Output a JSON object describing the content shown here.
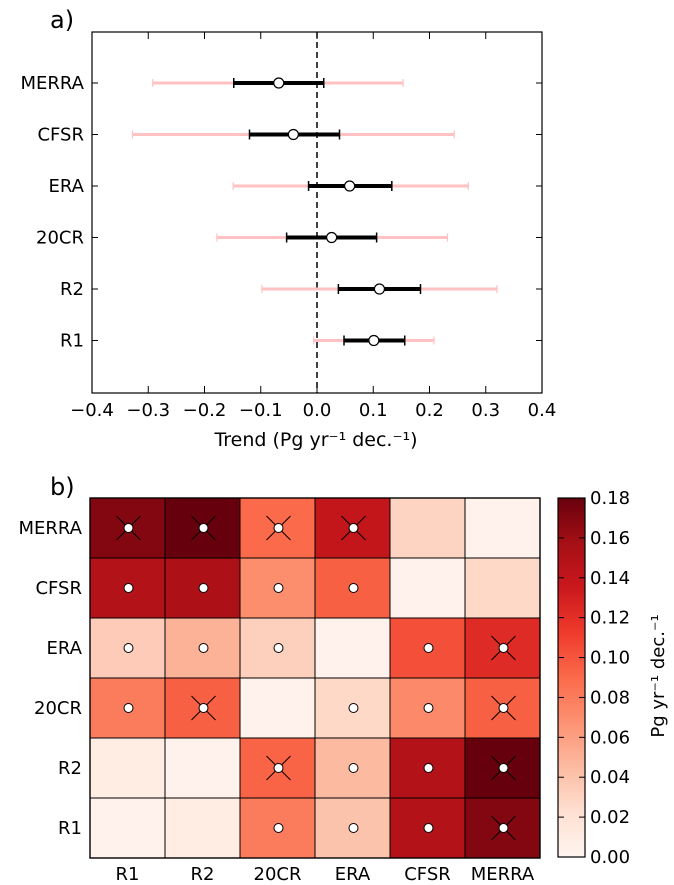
{
  "chart_data": [
    {
      "type": "errorbar",
      "panel_label": "a)",
      "xlabel": "Trend (Pg yr⁻¹ dec.⁻¹)",
      "xlim": [
        -0.4,
        0.4
      ],
      "xticks": [
        -0.4,
        -0.3,
        -0.2,
        -0.1,
        0.0,
        0.1,
        0.2,
        0.3,
        0.4
      ],
      "xtick_labels": [
        "−0.4",
        "−0.3",
        "−0.2",
        "−0.1",
        "0.0",
        "0.1",
        "0.2",
        "0.3",
        "0.4"
      ],
      "categories": [
        "MERRA",
        "CFSR",
        "ERA",
        "20CR",
        "R2",
        "R1"
      ],
      "zero_line": "dashed",
      "points": [
        {
          "name": "MERRA",
          "value": -0.068,
          "inner": [
            -0.148,
            0.012
          ],
          "outer": [
            -0.292,
            0.153
          ]
        },
        {
          "name": "CFSR",
          "value": -0.042,
          "inner": [
            -0.12,
            0.04
          ],
          "outer": [
            -0.328,
            0.244
          ]
        },
        {
          "name": "ERA",
          "value": 0.058,
          "inner": [
            -0.015,
            0.133
          ],
          "outer": [
            -0.149,
            0.269
          ]
        },
        {
          "name": "20CR",
          "value": 0.026,
          "inner": [
            -0.054,
            0.106
          ],
          "outer": [
            -0.178,
            0.232
          ]
        },
        {
          "name": "R2",
          "value": 0.111,
          "inner": [
            0.038,
            0.184
          ],
          "outer": [
            -0.098,
            0.32
          ]
        },
        {
          "name": "R1",
          "value": 0.101,
          "inner": [
            0.048,
            0.156
          ],
          "outer": [
            -0.006,
            0.208
          ]
        }
      ],
      "colors": {
        "inner": "#000000",
        "outer": "#ffc1c1",
        "marker_fill": "#ffffff"
      }
    },
    {
      "type": "heatmap",
      "panel_label": "b)",
      "x_categories": [
        "R1",
        "R2",
        "20CR",
        "ERA",
        "CFSR",
        "MERRA"
      ],
      "y_categories": [
        "MERRA",
        "CFSR",
        "ERA",
        "20CR",
        "R2",
        "R1"
      ],
      "values": [
        [
          0.17,
          0.18,
          0.09,
          0.14,
          0.03,
          0.003
        ],
        [
          0.15,
          0.153,
          0.07,
          0.095,
          0.003,
          0.027
        ],
        [
          0.035,
          0.05,
          0.032,
          0.003,
          0.103,
          0.123
        ],
        [
          0.08,
          0.095,
          0.003,
          0.027,
          0.072,
          0.095
        ],
        [
          0.01,
          0.003,
          0.093,
          0.045,
          0.15,
          0.18
        ],
        [
          0.003,
          0.01,
          0.08,
          0.04,
          0.15,
          0.17
        ]
      ],
      "circles": [
        [
          true,
          true,
          true,
          true,
          false,
          false
        ],
        [
          true,
          true,
          true,
          true,
          false,
          false
        ],
        [
          true,
          true,
          true,
          false,
          true,
          true
        ],
        [
          true,
          true,
          false,
          true,
          true,
          true
        ],
        [
          false,
          false,
          true,
          true,
          true,
          true
        ],
        [
          false,
          false,
          true,
          true,
          true,
          true
        ]
      ],
      "crosses": [
        [
          true,
          true,
          true,
          true,
          false,
          false
        ],
        [
          false,
          false,
          false,
          false,
          false,
          false
        ],
        [
          false,
          false,
          false,
          false,
          false,
          true
        ],
        [
          false,
          true,
          false,
          false,
          false,
          true
        ],
        [
          false,
          false,
          true,
          false,
          false,
          true
        ],
        [
          false,
          false,
          false,
          false,
          false,
          true
        ]
      ],
      "colorbar": {
        "label": "Pg yr⁻¹ dec.⁻¹",
        "range": [
          0.0,
          0.18
        ],
        "ticks": [
          "0.00",
          "0.02",
          "0.04",
          "0.06",
          "0.08",
          "0.10",
          "0.12",
          "0.14",
          "0.16",
          "0.18"
        ],
        "colormap": "Reds"
      }
    }
  ]
}
